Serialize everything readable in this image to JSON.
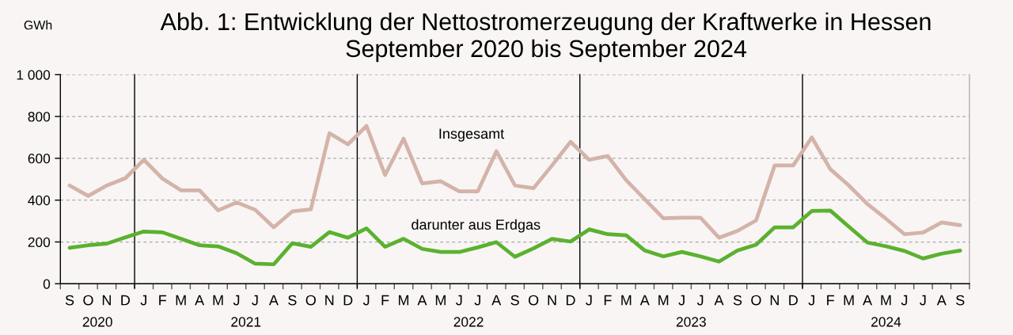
{
  "chart_data": {
    "type": "line",
    "title": "Abb. 1: Entwicklung der Nettostromerzeugung der Kraftwerke in Hessen",
    "subtitle": "September 2020 bis September 2024",
    "ylabel": "GWh",
    "categories": [
      "S",
      "O",
      "N",
      "D",
      "J",
      "F",
      "M",
      "A",
      "M",
      "J",
      "J",
      "A",
      "S",
      "O",
      "N",
      "D",
      "J",
      "F",
      "M",
      "A",
      "M",
      "J",
      "J",
      "A",
      "S",
      "O",
      "N",
      "D",
      "J",
      "F",
      "M",
      "A",
      "M",
      "J",
      "J",
      "A",
      "S",
      "O",
      "N",
      "D",
      "J",
      "F",
      "M",
      "A",
      "M",
      "J",
      "J",
      "A",
      "S"
    ],
    "series": [
      {
        "name": "Insgesamt",
        "color": "#d4b3a9",
        "values": [
          470,
          420,
          470,
          505,
          593,
          503,
          447,
          447,
          351,
          389,
          354,
          270,
          346,
          356,
          720,
          667,
          755,
          520,
          694,
          480,
          490,
          442,
          442,
          634,
          470,
          457,
          566,
          679,
          593,
          611,
          495,
          404,
          313,
          316,
          316,
          220,
          253,
          303,
          566,
          566,
          700,
          548,
          470,
          381,
          311,
          237,
          245,
          293,
          280
        ]
      },
      {
        "name": "darunter aus Erdgas",
        "color": "#5bb12f",
        "values": [
          172,
          184,
          192,
          222,
          250,
          246,
          215,
          184,
          179,
          146,
          96,
          93,
          194,
          177,
          247,
          220,
          265,
          177,
          215,
          167,
          152,
          152,
          174,
          199,
          129,
          169,
          215,
          202,
          260,
          237,
          232,
          159,
          131,
          152,
          131,
          106,
          159,
          187,
          270,
          270,
          348,
          350,
          273,
          197,
          179,
          157,
          121,
          144,
          159
        ]
      }
    ],
    "ylim": [
      0,
      1000
    ],
    "yticks": [
      0,
      200,
      400,
      600,
      800,
      {
        "value": 1000,
        "label": "1 000"
      }
    ],
    "annotations": [
      "2020",
      "2021",
      "2022",
      "2023",
      "2024"
    ],
    "grid": "y",
    "line_style": "solid"
  }
}
